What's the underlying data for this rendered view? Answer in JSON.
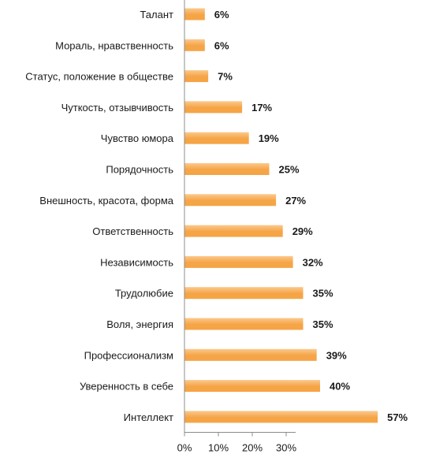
{
  "chart_data": {
    "type": "bar",
    "orientation": "horizontal",
    "categories": [
      "Талант",
      "Мораль, нравственность",
      "Статус, положение в обществе",
      "Чуткость, отзывчивость",
      "Чувство юмора",
      "Порядочность",
      "Внешность, красота, форма",
      "Ответственность",
      "Независимость",
      "Трудолюбие",
      "Воля, энергия",
      "Профессионализм",
      "Уверенность в себе",
      "Интеллект"
    ],
    "values": [
      6,
      6,
      7,
      17,
      19,
      25,
      27,
      29,
      32,
      35,
      35,
      39,
      40,
      57
    ],
    "value_labels": [
      "6%",
      "6%",
      "7%",
      "17%",
      "19%",
      "25%",
      "27%",
      "29%",
      "32%",
      "35%",
      "35%",
      "39%",
      "40%",
      "57%"
    ],
    "x_ticks": [
      0,
      10,
      20,
      30
    ],
    "x_tick_labels": [
      "0%",
      "10%",
      "20%",
      "30%"
    ],
    "xlim": [
      0,
      60
    ],
    "bar_color": "#f5a446",
    "bar_color_light": "#fbc98d",
    "grid": false,
    "legend": "none"
  }
}
